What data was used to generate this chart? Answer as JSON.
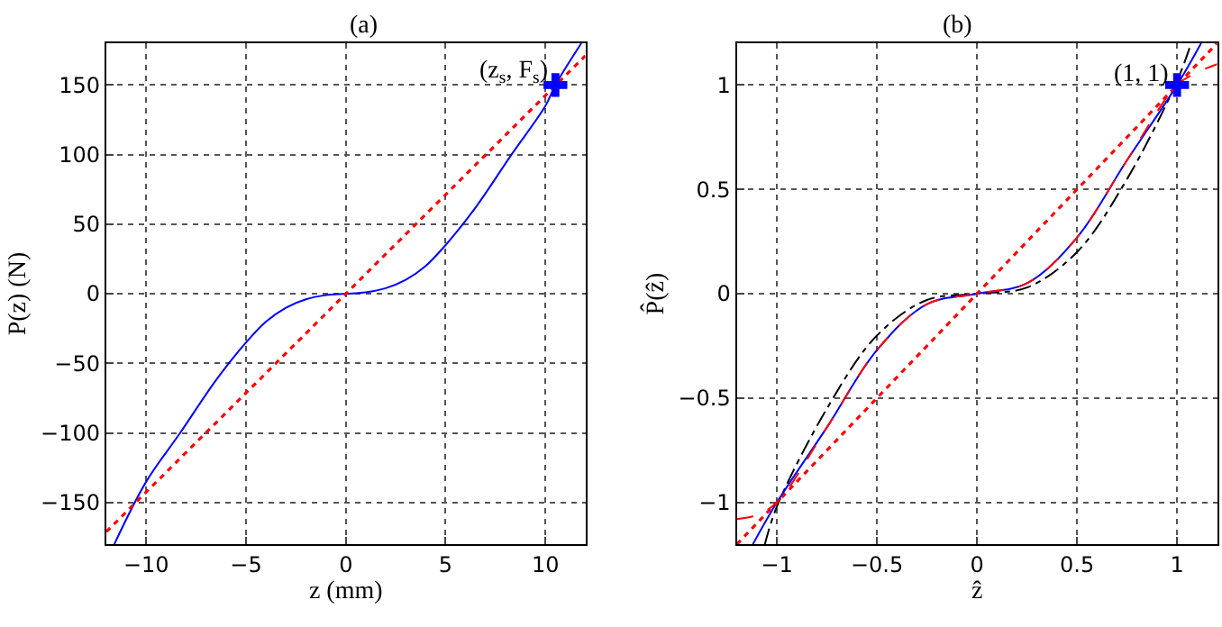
{
  "chart_data": [
    {
      "type": "line",
      "title": "(a)",
      "xlabel": "z (mm)",
      "ylabel": "P(z) (N)",
      "xlim": [
        -12,
        12
      ],
      "ylim": [
        -180,
        180
      ],
      "xticks": [
        -10,
        -5,
        0,
        5,
        10
      ],
      "yticks": [
        -150,
        -100,
        -50,
        0,
        50,
        100,
        150
      ],
      "grid": true,
      "annotations": [
        {
          "text": "(z$_{s}$, F$_{s}$)",
          "x": 10.5,
          "y": 150
        }
      ],
      "series": [
        {
          "color": "#0000ff",
          "line_style": "solid",
          "x": [
            -11.6,
            -10,
            -8.3,
            -6.5,
            -5,
            -4,
            -3,
            -2,
            -1,
            0,
            1,
            2,
            3,
            4,
            5,
            6.5,
            8.3,
            10,
            10.5,
            11.8
          ],
          "values": [
            -180,
            -135,
            -100,
            -62,
            -35,
            -20,
            -10,
            -4,
            -1,
            0,
            1,
            4,
            10,
            20,
            35,
            62,
            100,
            135,
            150,
            180
          ]
        },
        {
          "color": "#ff0000",
          "line_style": "dotted",
          "x": [
            -12,
            12
          ],
          "values": [
            -171,
            171
          ]
        },
        {
          "type": "scatter",
          "marker": "cross",
          "color": "#0000ff",
          "x": [
            10.5
          ],
          "values": [
            150
          ]
        }
      ]
    },
    {
      "type": "line",
      "title": "(b)",
      "xlabel": "ẑ",
      "ylabel": "P̂(ẑ)",
      "xlim": [
        -1.2,
        1.2
      ],
      "ylim": [
        -1.2,
        1.2
      ],
      "xticks": [
        -1,
        -0.5,
        0,
        0.5,
        1
      ],
      "yticks": [
        -1,
        -0.5,
        0,
        0.5,
        1
      ],
      "grid": true,
      "annotations": [
        {
          "text": "(1, 1)",
          "x": 1,
          "y": 1
        }
      ],
      "series": [
        {
          "color": "#000000",
          "line_style": "dashdot",
          "x": [
            -1.06,
            -1,
            -0.75,
            -0.5,
            -0.25,
            0,
            0.25,
            0.5,
            0.75,
            1,
            1.07
          ],
          "values": [
            -1.2,
            -1.02,
            -0.55,
            -0.2,
            -0.03,
            0,
            0.03,
            0.2,
            0.55,
            1.02,
            1.2
          ]
        },
        {
          "color": "#0000ff",
          "line_style": "solid",
          "x": [
            -1.12,
            -1,
            -0.75,
            -0.5,
            -0.25,
            0,
            0.25,
            0.5,
            0.75,
            1,
            1.12
          ],
          "values": [
            -1.2,
            -1,
            -0.64,
            -0.27,
            -0.05,
            0,
            0.05,
            0.27,
            0.64,
            1,
            1.2
          ]
        },
        {
          "color": "#ff0000",
          "line_style": "dashed",
          "x": [
            -1.2,
            -1.1,
            -1,
            -0.75,
            -0.5,
            -0.25,
            0,
            0.25,
            0.5,
            0.75,
            1,
            1.1,
            1.2
          ],
          "values": [
            -1.08,
            -1.06,
            -1,
            -0.64,
            -0.27,
            -0.05,
            0,
            0.05,
            0.27,
            0.64,
            1,
            1.06,
            1.1
          ]
        },
        {
          "color": "#ff0000",
          "line_style": "dotted",
          "x": [
            -1.2,
            1.2
          ],
          "values": [
            -1.2,
            1.2
          ]
        },
        {
          "type": "scatter",
          "marker": "cross",
          "color": "#0000ff",
          "x": [
            1
          ],
          "values": [
            1
          ]
        }
      ]
    }
  ]
}
